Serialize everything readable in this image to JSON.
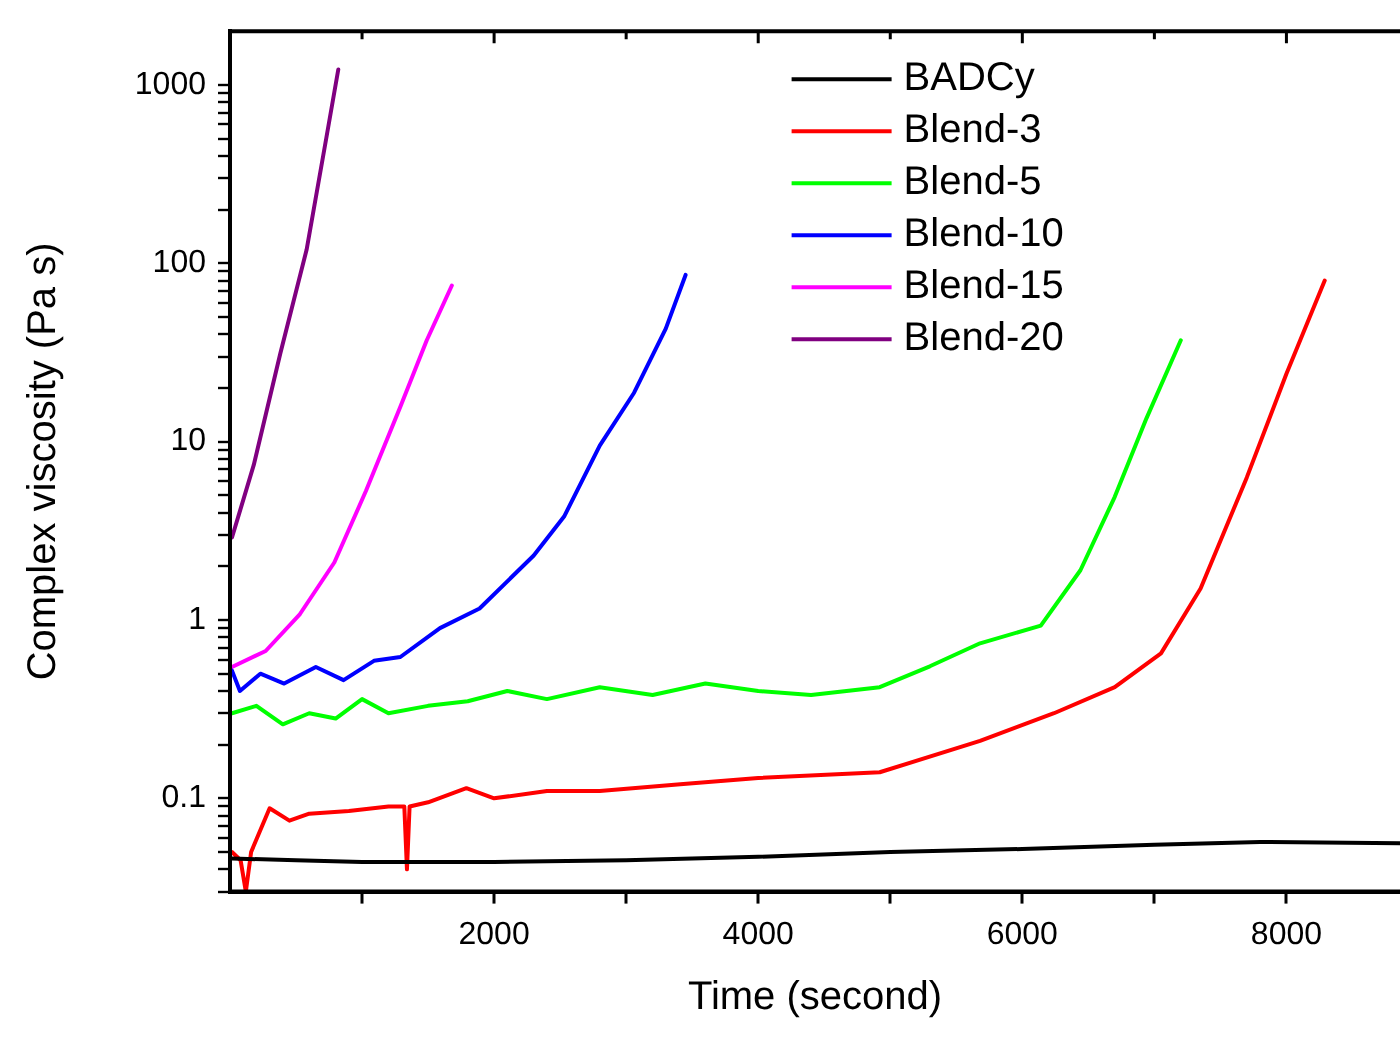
{
  "chart_data": {
    "type": "line",
    "xlabel": "Time (second)",
    "ylabel": "Complex viscosity (Pa s)",
    "log": "y",
    "xlim": [
      0,
      8860
    ],
    "ylim": [
      0.03,
      2000
    ],
    "xticks": [
      {
        "value": 1000,
        "label": null
      },
      2000,
      {
        "value": 3000,
        "label": null
      },
      4000,
      {
        "value": 5000,
        "label": null
      },
      6000,
      {
        "value": 7000,
        "label": null
      },
      8000
    ],
    "yticks": [
      {
        "value": 0.03,
        "label": null
      },
      {
        "value": 0.04,
        "label": null
      },
      {
        "value": 0.05,
        "label": null
      },
      {
        "value": 0.06,
        "label": null
      },
      {
        "value": 0.07,
        "label": null
      },
      {
        "value": 0.08,
        "label": null
      },
      {
        "value": 0.09,
        "label": null
      },
      0.1,
      {
        "value": 0.2,
        "label": null
      },
      {
        "value": 0.3,
        "label": null
      },
      {
        "value": 0.4,
        "label": null
      },
      {
        "value": 0.5,
        "label": null
      },
      {
        "value": 0.6,
        "label": null
      },
      {
        "value": 0.7,
        "label": null
      },
      {
        "value": 0.8,
        "label": null
      },
      {
        "value": 0.9,
        "label": null
      },
      1,
      {
        "value": 2,
        "label": null
      },
      {
        "value": 3,
        "label": null
      },
      {
        "value": 4,
        "label": null
      },
      {
        "value": 5,
        "label": null
      },
      {
        "value": 6,
        "label": null
      },
      {
        "value": 7,
        "label": null
      },
      {
        "value": 8,
        "label": null
      },
      {
        "value": 9,
        "label": null
      },
      10,
      {
        "value": 20,
        "label": null
      },
      {
        "value": 30,
        "label": null
      },
      {
        "value": 40,
        "label": null
      },
      {
        "value": 50,
        "label": null
      },
      {
        "value": 60,
        "label": null
      },
      {
        "value": 70,
        "label": null
      },
      {
        "value": 80,
        "label": null
      },
      {
        "value": 90,
        "label": null
      },
      100,
      {
        "value": 200,
        "label": null
      },
      {
        "value": 300,
        "label": null
      },
      {
        "value": 400,
        "label": null
      },
      {
        "value": 500,
        "label": null
      },
      {
        "value": 600,
        "label": null
      },
      {
        "value": 700,
        "label": null
      },
      {
        "value": 800,
        "label": null
      },
      {
        "value": 900,
        "label": null
      },
      1000
    ],
    "grid": false,
    "legend": "top",
    "marker": "none",
    "line_style": "solid",
    "series": [
      {
        "name": "BADCy",
        "color": "#000000",
        "x": [
          15,
          500,
          1000,
          2000,
          3000,
          4000,
          5000,
          6000,
          7000,
          7800,
          8860
        ],
        "values": [
          0.046,
          0.045,
          0.044,
          0.044,
          0.045,
          0.047,
          0.05,
          0.052,
          0.055,
          0.057,
          0.056
        ]
      },
      {
        "name": "Blend-3",
        "color": "#ff0000",
        "x": [
          15,
          80,
          120,
          160,
          300,
          450,
          600,
          900,
          1200,
          1320,
          1340,
          1360,
          1500,
          1790,
          2000,
          2400,
          2800,
          3410,
          4000,
          4920,
          5680,
          6240,
          6700,
          7050,
          7350,
          7700,
          8000,
          8290
        ],
        "values": [
          0.05,
          0.045,
          0.03,
          0.05,
          0.088,
          0.075,
          0.082,
          0.085,
          0.09,
          0.09,
          0.04,
          0.09,
          0.095,
          0.114,
          0.1,
          0.11,
          0.11,
          0.12,
          0.13,
          0.14,
          0.21,
          0.3,
          0.42,
          0.65,
          1.5,
          6.3,
          24,
          80
        ]
      },
      {
        "name": "Blend-5",
        "color": "#00ff00",
        "x": [
          15,
          200,
          400,
          600,
          800,
          1000,
          1200,
          1500,
          1800,
          2100,
          2400,
          2800,
          3200,
          3600,
          4000,
          4400,
          4920,
          5300,
          5680,
          6140,
          6440,
          6700,
          6940,
          7200
        ],
        "values": [
          0.3,
          0.33,
          0.26,
          0.3,
          0.28,
          0.36,
          0.3,
          0.33,
          0.35,
          0.4,
          0.36,
          0.42,
          0.38,
          0.44,
          0.4,
          0.38,
          0.42,
          0.55,
          0.74,
          0.93,
          1.9,
          4.9,
          13.5,
          37
        ]
      },
      {
        "name": "Blend-10",
        "color": "#0000ff",
        "x": [
          15,
          75,
          230,
          410,
          650,
          860,
          1090,
          1290,
          1590,
          1890,
          2300,
          2530,
          2800,
          3060,
          3300,
          3450
        ],
        "values": [
          0.52,
          0.4,
          0.5,
          0.44,
          0.545,
          0.46,
          0.59,
          0.62,
          0.9,
          1.16,
          2.3,
          3.8,
          9.5,
          18.8,
          43,
          86
        ]
      },
      {
        "name": "Blend-15",
        "color": "#ff00ff",
        "x": [
          15,
          270,
          530,
          790,
          1030,
          1290,
          1490,
          1680
        ],
        "values": [
          0.545,
          0.67,
          1.08,
          2.1,
          5.3,
          15.7,
          37,
          75
        ]
      },
      {
        "name": "Blend-20",
        "color": "#800080",
        "x": [
          15,
          180,
          380,
          580,
          730,
          820
        ],
        "values": [
          2.9,
          7.4,
          31,
          119,
          507,
          1220
        ]
      }
    ]
  }
}
